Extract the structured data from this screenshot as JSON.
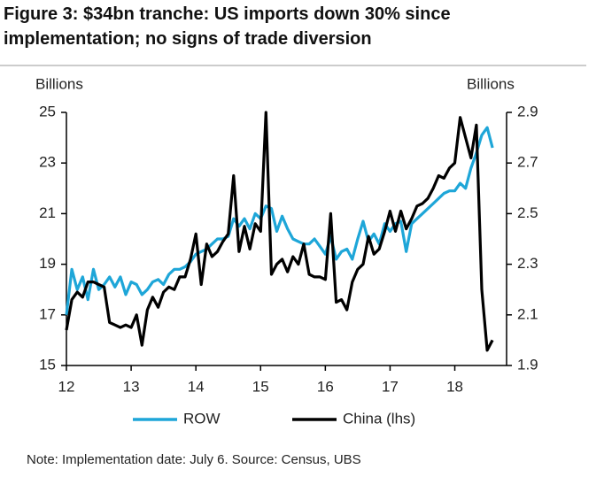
{
  "chart_data": {
    "type": "line",
    "title": "Figure 3: $34bn tranche: US imports down 30% since implementation; no signs of trade diversion",
    "ylabel": "Billions",
    "y2label": "Billions",
    "note": "Note: Implementation date: July 6. Source:  Census, UBS",
    "x": [
      12,
      12.083,
      12.167,
      12.25,
      12.333,
      12.417,
      12.5,
      12.583,
      12.667,
      12.75,
      12.833,
      12.917,
      13,
      13.083,
      13.167,
      13.25,
      13.333,
      13.417,
      13.5,
      13.583,
      13.667,
      13.75,
      13.833,
      13.917,
      14,
      14.083,
      14.167,
      14.25,
      14.333,
      14.417,
      14.5,
      14.583,
      14.667,
      14.75,
      14.833,
      14.917,
      15,
      15.083,
      15.167,
      15.25,
      15.333,
      15.417,
      15.5,
      15.583,
      15.667,
      15.75,
      15.833,
      15.917,
      16,
      16.083,
      16.167,
      16.25,
      16.333,
      16.417,
      16.5,
      16.583,
      16.667,
      16.75,
      16.833,
      16.917,
      17,
      17.083,
      17.167,
      17.25,
      17.333,
      17.417,
      17.5,
      17.583,
      17.667,
      17.75,
      17.833,
      17.917,
      18,
      18.083,
      18.167,
      18.25,
      18.333,
      18.417,
      18.5,
      18.583
    ],
    "series": [
      {
        "name": "ROW",
        "color": "#1ea6d8",
        "axis": "y2",
        "values": [
          2.1,
          2.28,
          2.2,
          2.25,
          2.16,
          2.28,
          2.2,
          2.22,
          2.25,
          2.21,
          2.25,
          2.18,
          2.23,
          2.22,
          2.18,
          2.2,
          2.23,
          2.24,
          2.22,
          2.26,
          2.28,
          2.28,
          2.29,
          2.31,
          2.34,
          2.35,
          2.36,
          2.38,
          2.4,
          2.4,
          2.41,
          2.48,
          2.45,
          2.48,
          2.44,
          2.5,
          2.48,
          2.53,
          2.52,
          2.43,
          2.49,
          2.44,
          2.4,
          2.39,
          2.38,
          2.38,
          2.4,
          2.37,
          2.34,
          2.41,
          2.32,
          2.35,
          2.36,
          2.32,
          2.4,
          2.47,
          2.39,
          2.42,
          2.38,
          2.46,
          2.43,
          2.46,
          2.47,
          2.35,
          2.46,
          2.48,
          2.5,
          2.52,
          2.54,
          2.56,
          2.58,
          2.59,
          2.59,
          2.62,
          2.6,
          2.68,
          2.74,
          2.81,
          2.84,
          2.76
        ]
      },
      {
        "name": "China (lhs)",
        "color": "#000000",
        "values": [
          16.4,
          17.6,
          17.9,
          17.7,
          18.3,
          18.3,
          18.2,
          18.1,
          16.7,
          16.6,
          16.5,
          16.6,
          16.5,
          17.0,
          15.8,
          17.2,
          17.7,
          17.3,
          17.9,
          18.1,
          18.0,
          18.5,
          18.5,
          19.2,
          20.2,
          18.2,
          19.8,
          19.3,
          19.5,
          19.9,
          20.2,
          22.5,
          19.5,
          20.5,
          19.6,
          20.6,
          20.3,
          25.0,
          18.6,
          19.0,
          19.2,
          18.7,
          19.3,
          19.0,
          19.8,
          18.6,
          18.5,
          18.5,
          18.4,
          21.0,
          17.5,
          17.6,
          17.2,
          18.3,
          18.8,
          19.0,
          20.1,
          19.4,
          19.6,
          20.3,
          21.1,
          20.3,
          21.1,
          20.4,
          20.8,
          21.3,
          21.4,
          21.6,
          22.0,
          22.5,
          22.4,
          22.8,
          23.0,
          24.8,
          24.0,
          23.2,
          24.5,
          18.0,
          15.6,
          16.0
        ]
      }
    ],
    "xlim": [
      12,
      18.8
    ],
    "xticks": [
      12,
      13,
      14,
      15,
      16,
      17,
      18
    ],
    "ylim": [
      15,
      25
    ],
    "yticks": [
      15,
      17,
      19,
      21,
      23,
      25
    ],
    "y2lim": [
      1.9,
      2.9
    ],
    "y2ticks": [
      1.9,
      2.1,
      2.3,
      2.5,
      2.7,
      2.9
    ],
    "grid": false,
    "legend": "bottom"
  }
}
